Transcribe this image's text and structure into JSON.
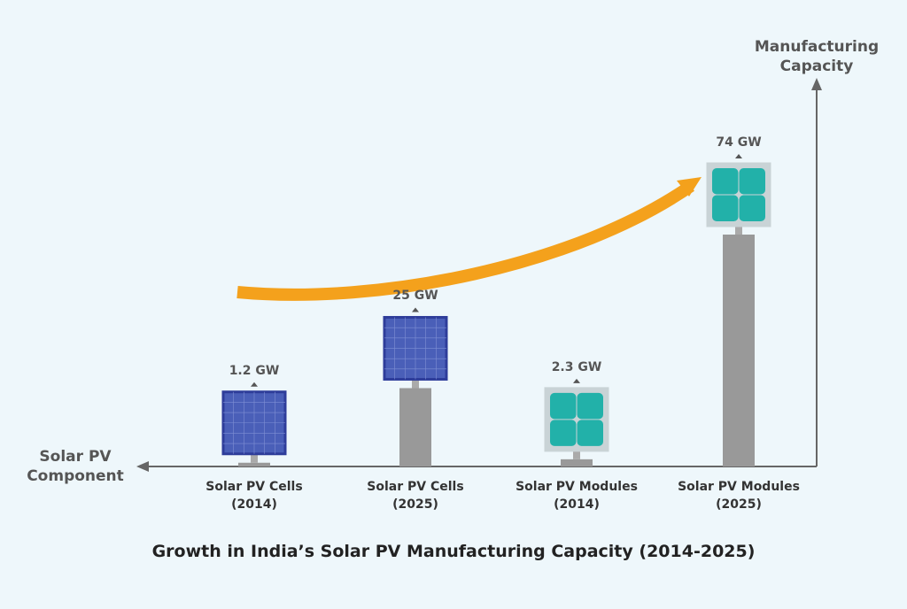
{
  "chart_data": {
    "type": "bar",
    "title": "Growth in India’s Solar PV Manufacturing Capacity (2014-2025)",
    "y_label": "Manufacturing Capacity",
    "x_label": "Solar PV Component",
    "categories": [
      "Solar PV Cells (2014)",
      "Solar PV Cells (2025)",
      "Solar PV Modules (2014)",
      "Solar PV Modules (2025)"
    ],
    "values": [
      1.2,
      25,
      2.3,
      74
    ],
    "value_labels": [
      "1.2 GW",
      "25 GW",
      "2.3 GW",
      "74 GW"
    ],
    "color": "#999999",
    "panel_colors": [
      "#4a5fb8",
      "#4a5fb8",
      "#22b1a9",
      "#22b1a9"
    ]
  }
}
